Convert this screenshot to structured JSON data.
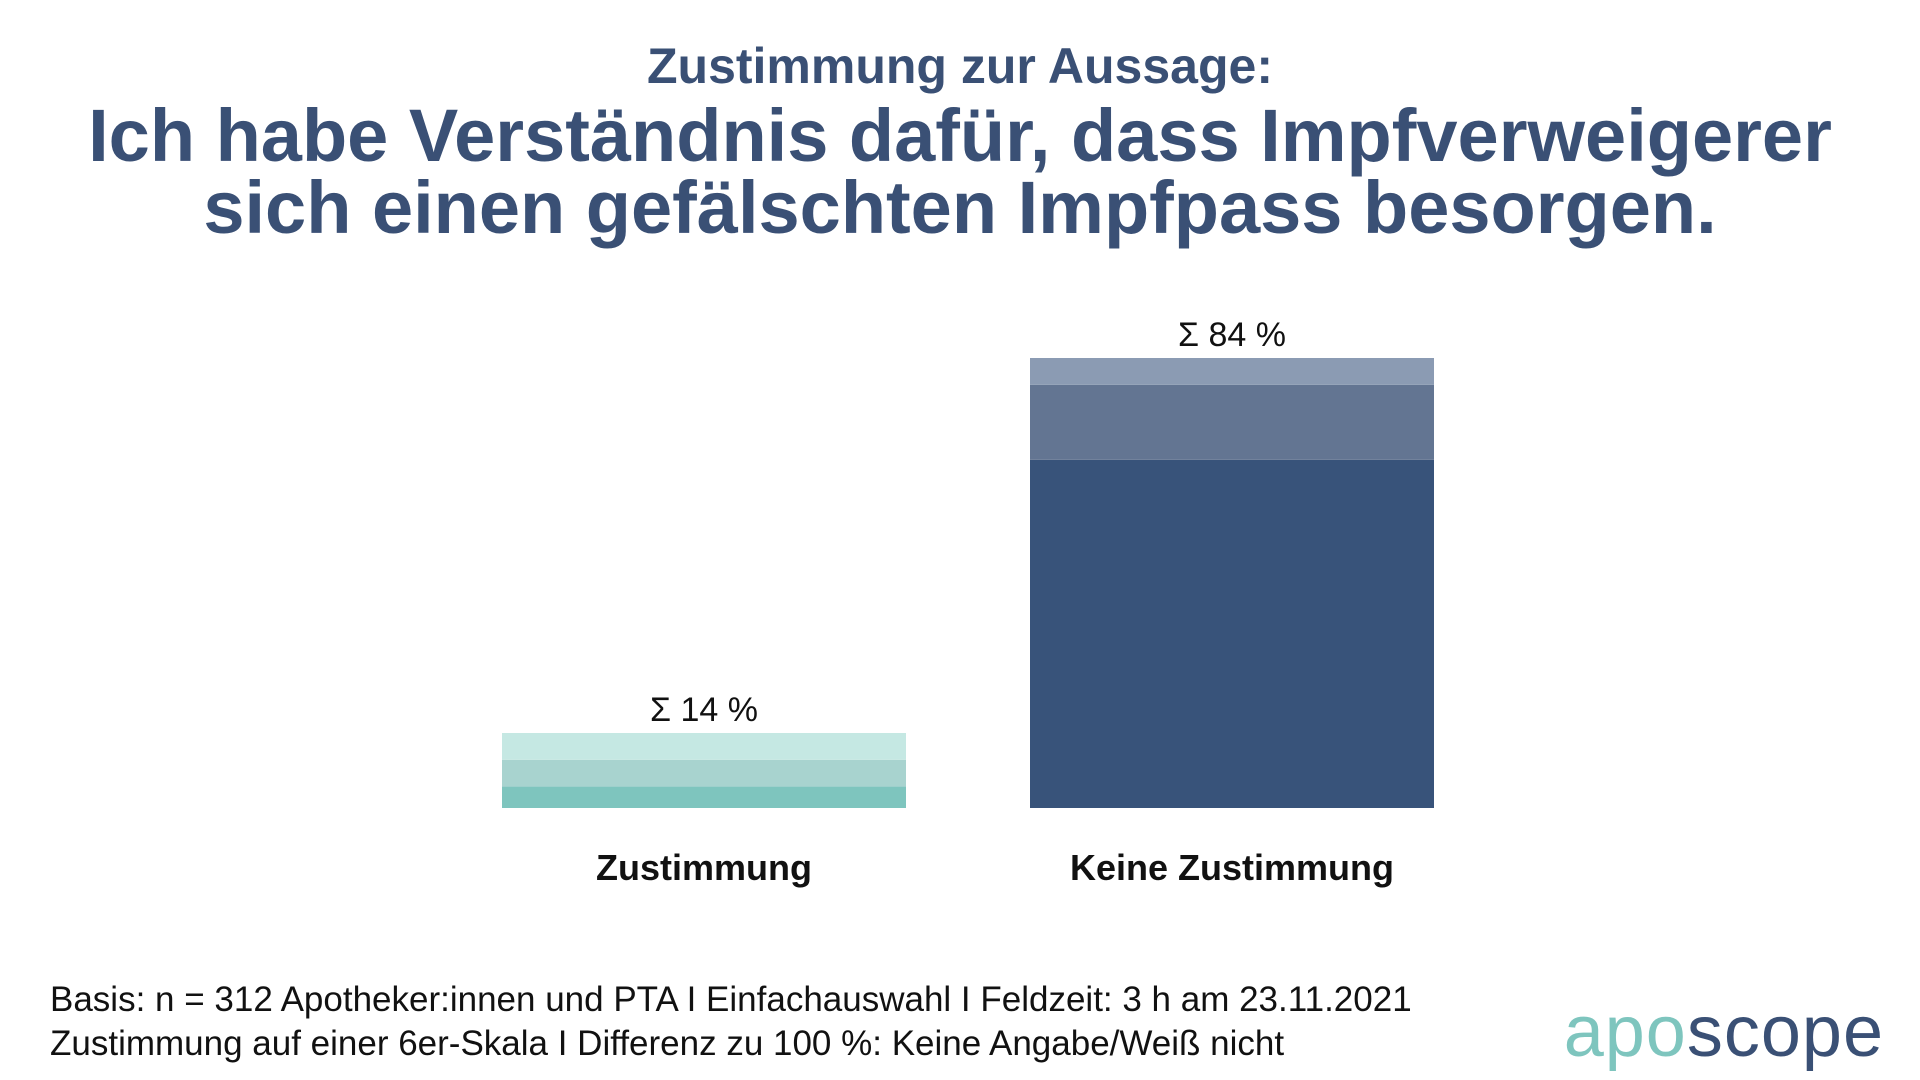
{
  "colors": {
    "title": "#3a5075",
    "zustimmung": [
      "#7ec5be",
      "#a8d3cf",
      "#c5e8e3"
    ],
    "keine_zustimmung": [
      "#38537a",
      "#637592",
      "#8b9bb3"
    ]
  },
  "chart_data": {
    "type": "bar",
    "stacked": true,
    "title": "Ich habe Verständnis dafür, dass Impfverweigerer sich einen gefälschten Impfpass besorgen.",
    "subtitle": "Zustimmung zur Aussage:",
    "categories": [
      "Zustimmung",
      "Keine Zustimmung"
    ],
    "totals": [
      14,
      84
    ],
    "total_labels": [
      "Σ 14  %",
      "Σ 84  %"
    ],
    "segments": [
      [
        4,
        5,
        5
      ],
      [
        65,
        14,
        5
      ]
    ],
    "unit": "%",
    "ylim": [
      0,
      84
    ],
    "grid": false,
    "legend": "none"
  },
  "footnote": {
    "line1": "Basis: n = 312 Apotheker:innen und PTA I Einfachauswahl I Feldzeit: 3 h am 23.11.2021",
    "line2": "Zustimmung auf einer 6er-Skala I Differenz zu 100 %: Keine Angabe/Weiß nicht"
  },
  "logo": {
    "part1": "apo",
    "part2": "scope"
  }
}
